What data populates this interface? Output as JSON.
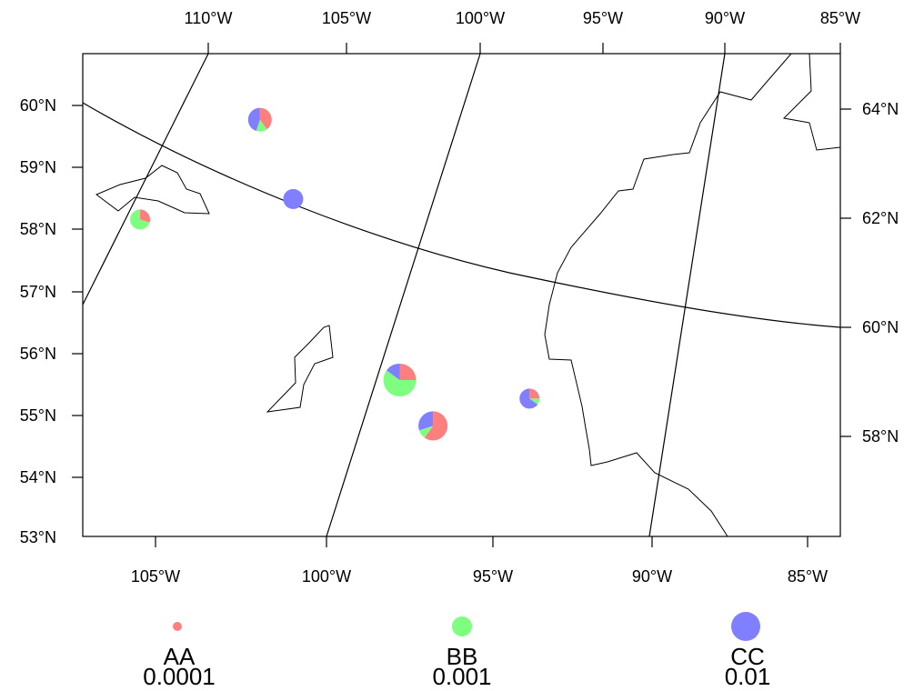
{
  "colors": {
    "AA": "#ff7f7f",
    "BB": "#7fff7f",
    "CC": "#7f7fff"
  },
  "top_lon_labels": [
    "110°W",
    "105°W",
    "100°W",
    "95°W",
    "90°W",
    "85°W"
  ],
  "bottom_lon_labels": [
    "105°W",
    "100°W",
    "95°W",
    "90°W",
    "85°W"
  ],
  "left_lat_labels": [
    "60°N",
    "59°N",
    "58°N",
    "57°N",
    "56°N",
    "55°N",
    "54°N",
    "53°N"
  ],
  "right_lat_labels": [
    "64°N",
    "62°N",
    "60°N",
    "58°N"
  ],
  "legend": [
    {
      "name": "AA",
      "value": "0.0001",
      "color": "#ff7f7f"
    },
    {
      "name": "BB",
      "value": "0.001",
      "color": "#7fff7f"
    },
    {
      "name": "CC",
      "value": "0.01",
      "color": "#7f7fff"
    }
  ],
  "pies": [
    {
      "id": "pie-1",
      "lon": -102.0,
      "lat": 59.77,
      "fractions": {
        "AA": 0.4,
        "BB": 0.15,
        "CC": 0.45
      }
    },
    {
      "id": "pie-2",
      "lon": -101.0,
      "lat": 58.49,
      "fractions": {
        "AA": 0.0,
        "BB": 0.0,
        "CC": 1.0
      }
    },
    {
      "id": "pie-3",
      "lon": -105.6,
      "lat": 58.16,
      "fractions": {
        "AA": 0.3,
        "BB": 0.7,
        "CC": 0.0
      }
    },
    {
      "id": "pie-4",
      "lon": -97.8,
      "lat": 55.57,
      "fractions": {
        "AA": 0.25,
        "BB": 0.6,
        "CC": 0.15
      }
    },
    {
      "id": "pie-5",
      "lon": -96.8,
      "lat": 54.83,
      "fractions": {
        "AA": 0.6,
        "BB": 0.1,
        "CC": 0.3
      }
    },
    {
      "id": "pie-6",
      "lon": -93.9,
      "lat": 55.27,
      "fractions": {
        "AA": 0.25,
        "BB": 0.1,
        "CC": 0.65
      }
    }
  ]
}
